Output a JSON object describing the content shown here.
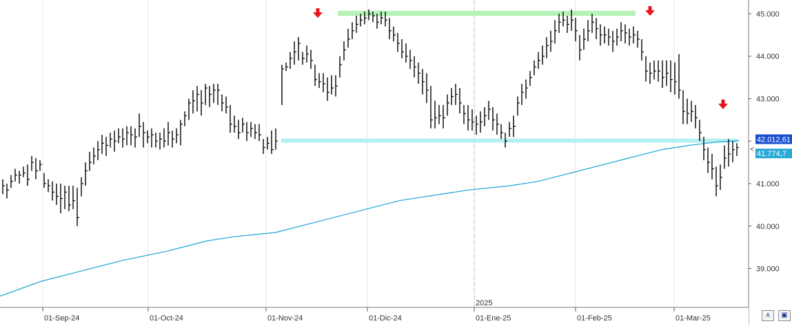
{
  "chart_data": {
    "type": "ohlc",
    "x_axis": {
      "tick_labels": [
        "01-Sep-24",
        "01-Oct-24",
        "01-Nov-24",
        "01-Dic-24",
        "01-Ene-25",
        "01-Feb-25",
        "01-Mar-25"
      ],
      "year_marker": "2025"
    },
    "y_axis": {
      "side": "right",
      "range": [
        38200,
        45300
      ],
      "tick_labels": [
        "39.000",
        "40.000",
        "41.000",
        "42.000",
        "43.000",
        "44.000",
        "45.000"
      ],
      "tick_values": [
        39000,
        40000,
        41000,
        42000,
        43000,
        44000,
        45000
      ]
    },
    "price_tags": [
      {
        "text": "42.012,61",
        "value": 42012.61,
        "color": "#1a4fd0"
      },
      {
        "text": "41.774,7",
        "value": 41774.7,
        "color": "#29a9d6"
      }
    ],
    "moving_average": {
      "color": "#1aa3d8",
      "points": [
        [
          0,
          38350
        ],
        [
          60,
          38700
        ],
        [
          120,
          38950
        ],
        [
          180,
          39200
        ],
        [
          240,
          39400
        ],
        [
          300,
          39650
        ],
        [
          340,
          39750
        ],
        [
          400,
          39850
        ],
        [
          460,
          40100
        ],
        [
          520,
          40350
        ],
        [
          580,
          40600
        ],
        [
          640,
          40750
        ],
        [
          680,
          40850
        ],
        [
          740,
          40950
        ],
        [
          780,
          41050
        ],
        [
          840,
          41300
        ],
        [
          900,
          41550
        ],
        [
          960,
          41800
        ],
        [
          1000,
          41900
        ],
        [
          1040,
          41980
        ],
        [
          1072,
          42010
        ]
      ]
    },
    "bars": [
      [
        4,
        40750,
        41100,
        40950
      ],
      [
        10,
        40650,
        41000,
        40850
      ],
      [
        16,
        40900,
        41200,
        41050
      ],
      [
        22,
        41050,
        41350,
        41200
      ],
      [
        28,
        41000,
        41300,
        41200
      ],
      [
        34,
        41150,
        41400,
        41250
      ],
      [
        40,
        40950,
        41450,
        41100
      ],
      [
        46,
        41300,
        41650,
        41500
      ],
      [
        52,
        41100,
        41600,
        41300
      ],
      [
        58,
        41300,
        41550,
        41450
      ],
      [
        64,
        40900,
        41250,
        41000
      ],
      [
        70,
        40800,
        41100,
        40950
      ],
      [
        76,
        40600,
        41050,
        40800
      ],
      [
        82,
        40500,
        41000,
        40700
      ],
      [
        88,
        40300,
        41000,
        40650
      ],
      [
        94,
        40400,
        40950,
        40800
      ],
      [
        100,
        40350,
        40950,
        40500
      ],
      [
        106,
        40400,
        40950,
        40600
      ],
      [
        112,
        40000,
        40900,
        40200
      ],
      [
        118,
        40700,
        41150,
        41000
      ],
      [
        124,
        40950,
        41500,
        41300
      ],
      [
        130,
        41300,
        41750,
        41500
      ],
      [
        136,
        41450,
        41850,
        41650
      ],
      [
        142,
        41550,
        42000,
        41800
      ],
      [
        148,
        41700,
        42150,
        41950
      ],
      [
        154,
        41650,
        42100,
        41900
      ],
      [
        160,
        41850,
        42200,
        42050
      ],
      [
        166,
        41750,
        42250,
        42000
      ],
      [
        172,
        41950,
        42300,
        42100
      ],
      [
        178,
        41850,
        42300,
        42050
      ],
      [
        184,
        41900,
        42350,
        42200
      ],
      [
        190,
        41900,
        42350,
        42150
      ],
      [
        196,
        41850,
        42300,
        42100
      ],
      [
        202,
        42100,
        42650,
        42350
      ],
      [
        208,
        41850,
        42450,
        42200
      ],
      [
        214,
        41950,
        42250,
        42100
      ],
      [
        220,
        41850,
        42300,
        42150
      ],
      [
        226,
        41850,
        42200,
        42000
      ],
      [
        232,
        41800,
        42200,
        42050
      ],
      [
        238,
        41850,
        42300,
        42000
      ],
      [
        244,
        41900,
        42450,
        42200
      ],
      [
        250,
        41850,
        42250,
        42050
      ],
      [
        256,
        41950,
        42300,
        42150
      ],
      [
        262,
        41900,
        42500,
        42400
      ],
      [
        268,
        42350,
        42700,
        42600
      ],
      [
        274,
        42500,
        43000,
        42900
      ],
      [
        280,
        42650,
        43200,
        42950
      ],
      [
        286,
        42700,
        43300,
        43100
      ],
      [
        292,
        42600,
        43200,
        42900
      ],
      [
        298,
        42850,
        43350,
        43250
      ],
      [
        304,
        42800,
        43300,
        43100
      ],
      [
        310,
        42900,
        43350,
        43200
      ],
      [
        316,
        42850,
        43350,
        43200
      ],
      [
        322,
        42700,
        43100,
        42900
      ],
      [
        328,
        42650,
        43050,
        42800
      ],
      [
        334,
        42200,
        42850,
        42400
      ],
      [
        340,
        42200,
        42600,
        42350
      ],
      [
        346,
        42050,
        42500,
        42200
      ],
      [
        352,
        42200,
        42550,
        42400
      ],
      [
        358,
        42000,
        42450,
        42200
      ],
      [
        364,
        42100,
        42450,
        42300
      ],
      [
        370,
        42050,
        42400,
        42200
      ],
      [
        376,
        42000,
        42400,
        42150
      ],
      [
        382,
        41700,
        42050,
        41850
      ],
      [
        388,
        41800,
        42100,
        41950
      ],
      [
        394,
        41700,
        42250,
        41800
      ],
      [
        400,
        41800,
        42300,
        42000
      ],
      [
        409,
        42850,
        43800,
        43700
      ],
      [
        415,
        43650,
        43850,
        43750
      ],
      [
        421,
        43700,
        44100,
        43950
      ],
      [
        427,
        43800,
        44350,
        44100
      ],
      [
        433,
        43900,
        44450,
        44300
      ],
      [
        439,
        43800,
        44100,
        43950
      ],
      [
        445,
        43850,
        44250,
        44050
      ],
      [
        451,
        43700,
        44150,
        43900
      ],
      [
        457,
        43300,
        43800,
        43450
      ],
      [
        463,
        43250,
        43600,
        43400
      ],
      [
        469,
        43150,
        43600,
        43350
      ],
      [
        475,
        42950,
        43500,
        43150
      ],
      [
        481,
        43100,
        43550,
        43250
      ],
      [
        487,
        43050,
        43550,
        43300
      ],
      [
        493,
        43500,
        44000,
        43800
      ],
      [
        499,
        43900,
        44350,
        44150
      ],
      [
        505,
        44200,
        44650,
        44400
      ],
      [
        511,
        44400,
        44800,
        44600
      ],
      [
        517,
        44550,
        44950,
        44750
      ],
      [
        523,
        44700,
        45000,
        44850
      ],
      [
        529,
        44750,
        45050,
        44900
      ],
      [
        535,
        44850,
        45100,
        45000
      ],
      [
        541,
        44800,
        45050,
        44950
      ],
      [
        547,
        44650,
        45000,
        44800
      ],
      [
        553,
        44750,
        45050,
        44900
      ],
      [
        559,
        44700,
        45050,
        44850
      ],
      [
        565,
        44400,
        44900,
        44600
      ],
      [
        571,
        44350,
        44700,
        44500
      ],
      [
        577,
        44100,
        44550,
        44300
      ],
      [
        583,
        43950,
        44400,
        44100
      ],
      [
        589,
        43850,
        44300,
        44000
      ],
      [
        595,
        43700,
        44150,
        43900
      ],
      [
        601,
        43500,
        44000,
        43750
      ],
      [
        607,
        43350,
        43850,
        43600
      ],
      [
        613,
        43100,
        43700,
        43400
      ],
      [
        619,
        42900,
        43600,
        43200
      ],
      [
        625,
        42300,
        43300,
        42500
      ],
      [
        631,
        42300,
        42950,
        42550
      ],
      [
        637,
        42400,
        42850,
        42600
      ],
      [
        643,
        42300,
        42850,
        42550
      ],
      [
        649,
        42600,
        43100,
        42900
      ],
      [
        655,
        42850,
        43250,
        43050
      ],
      [
        661,
        42850,
        43350,
        43100
      ],
      [
        667,
        42650,
        43250,
        42900
      ],
      [
        673,
        42400,
        42850,
        42650
      ],
      [
        679,
        42250,
        42850,
        42500
      ],
      [
        685,
        42250,
        42750,
        42450
      ],
      [
        691,
        42150,
        42600,
        42400
      ],
      [
        697,
        42200,
        42700,
        42450
      ],
      [
        703,
        42350,
        42800,
        42600
      ],
      [
        709,
        42500,
        42950,
        42750
      ],
      [
        715,
        42250,
        42800,
        42500
      ],
      [
        721,
        42150,
        42650,
        42400
      ],
      [
        727,
        42050,
        42400,
        42200
      ],
      [
        733,
        41850,
        42200,
        42000
      ],
      [
        739,
        42100,
        42450,
        42300
      ],
      [
        745,
        42100,
        42600,
        42350
      ],
      [
        751,
        42600,
        43050,
        42900
      ],
      [
        757,
        42850,
        43350,
        43150
      ],
      [
        763,
        43000,
        43450,
        43250
      ],
      [
        769,
        43300,
        43650,
        43500
      ],
      [
        775,
        43550,
        43900,
        43750
      ],
      [
        781,
        43700,
        44100,
        43900
      ],
      [
        787,
        43800,
        44250,
        44000
      ],
      [
        793,
        43950,
        44450,
        44250
      ],
      [
        799,
        44100,
        44600,
        44350
      ],
      [
        805,
        44300,
        44850,
        44600
      ],
      [
        811,
        44550,
        45000,
        44800
      ],
      [
        817,
        44700,
        45050,
        44850
      ],
      [
        823,
        44550,
        44950,
        44750
      ],
      [
        829,
        44600,
        45100,
        44850
      ],
      [
        835,
        44350,
        44900,
        44600
      ],
      [
        841,
        43900,
        44500,
        44150
      ],
      [
        847,
        44150,
        44650,
        44400
      ],
      [
        853,
        44350,
        44850,
        44600
      ],
      [
        859,
        44550,
        45000,
        44800
      ],
      [
        865,
        44400,
        44900,
        44650
      ],
      [
        871,
        44250,
        44750,
        44500
      ],
      [
        877,
        44300,
        44700,
        44500
      ],
      [
        883,
        44250,
        44650,
        44450
      ],
      [
        889,
        44100,
        44600,
        44350
      ],
      [
        895,
        44250,
        44650,
        44450
      ],
      [
        901,
        44350,
        44800,
        44600
      ],
      [
        907,
        44300,
        44750,
        44550
      ],
      [
        913,
        44250,
        44650,
        44450
      ],
      [
        919,
        44300,
        44700,
        44500
      ],
      [
        925,
        44200,
        44600,
        44400
      ],
      [
        931,
        43900,
        44400,
        44100
      ],
      [
        937,
        43400,
        44000,
        43650
      ],
      [
        943,
        43350,
        43850,
        43600
      ],
      [
        949,
        43450,
        43900,
        43650
      ],
      [
        955,
        43400,
        43900,
        43650
      ],
      [
        961,
        43250,
        43900,
        43500
      ],
      [
        967,
        43300,
        43900,
        43600
      ],
      [
        973,
        43150,
        43900,
        43450
      ],
      [
        979,
        43100,
        43850,
        43400
      ],
      [
        985,
        43000,
        44050,
        43200
      ],
      [
        991,
        42400,
        43200,
        42700
      ],
      [
        997,
        42400,
        43000,
        42650
      ],
      [
        1003,
        42450,
        42950,
        42700
      ],
      [
        1009,
        42300,
        42850,
        42550
      ],
      [
        1015,
        42000,
        42500,
        42200
      ],
      [
        1021,
        41550,
        42100,
        41800
      ],
      [
        1027,
        41250,
        41850,
        41500
      ],
      [
        1033,
        41100,
        41700,
        41350
      ],
      [
        1039,
        40700,
        41400,
        40950
      ],
      [
        1045,
        40850,
        41450,
        41150
      ],
      [
        1051,
        41350,
        41900,
        41600
      ],
      [
        1057,
        41400,
        42050,
        41700
      ],
      [
        1063,
        41500,
        42000,
        41800
      ],
      [
        1069,
        41650,
        41950,
        41850
      ]
    ],
    "annotations": {
      "resistance_zone": {
        "x_start": 490,
        "x_end": 922,
        "value_low": 44950,
        "value_high": 45070,
        "color": "#b6f2b6"
      },
      "support_zone": {
        "x_start": 408,
        "x_end": 1070,
        "value_low": 41965,
        "value_high": 42060,
        "color": "#b3f0f2"
      },
      "arrows": [
        {
          "x": 461,
          "value": 45000
        },
        {
          "x": 943,
          "value": 45050
        },
        {
          "x": 1049,
          "value": 42850
        }
      ]
    }
  },
  "toolbar": {
    "zoom_icon": "double-chevron-up-icon",
    "save_icon": "floppy-disk-icon"
  }
}
